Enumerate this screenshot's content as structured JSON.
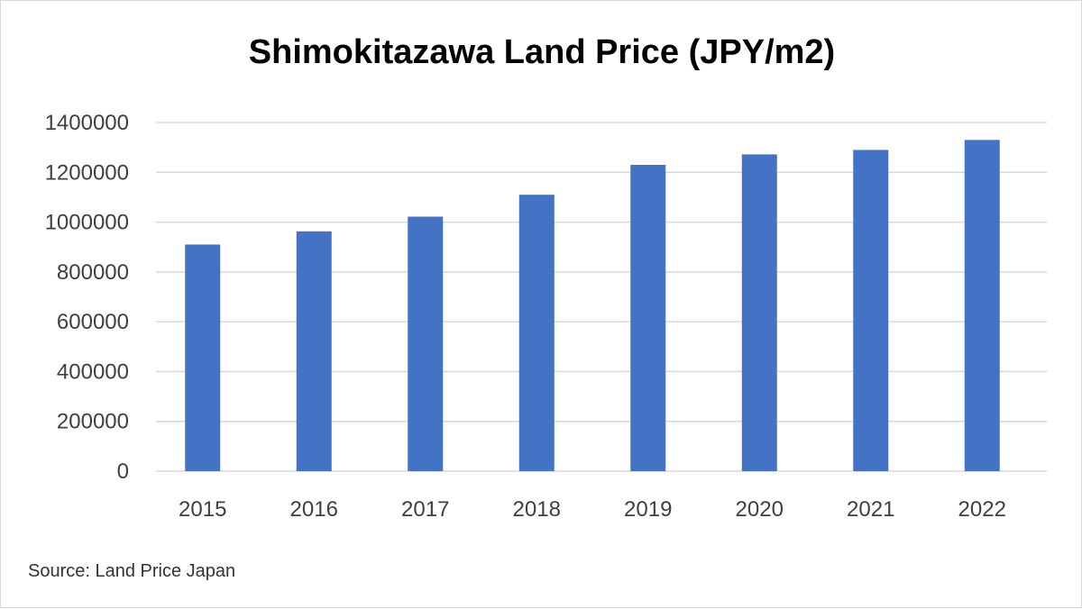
{
  "chart_data": {
    "type": "bar",
    "title": "Shimokitazawa Land Price (JPY/m2)",
    "categories": [
      "2015",
      "2016",
      "2017",
      "2018",
      "2019",
      "2020",
      "2021",
      "2022"
    ],
    "values": [
      910000,
      963000,
      1022000,
      1110000,
      1230000,
      1272000,
      1290000,
      1330000
    ],
    "ylim": [
      0,
      1400000
    ],
    "yticks": [
      0,
      200000,
      400000,
      600000,
      800000,
      1000000,
      1200000,
      1400000
    ],
    "ytick_labels": [
      "0",
      "200000",
      "400000",
      "600000",
      "800000",
      "1000000",
      "1200000",
      "1400000"
    ],
    "grid": true,
    "bar_color": "#4472c4",
    "grid_color": "#d9d9d9"
  },
  "source": "Source: Land Price Japan"
}
